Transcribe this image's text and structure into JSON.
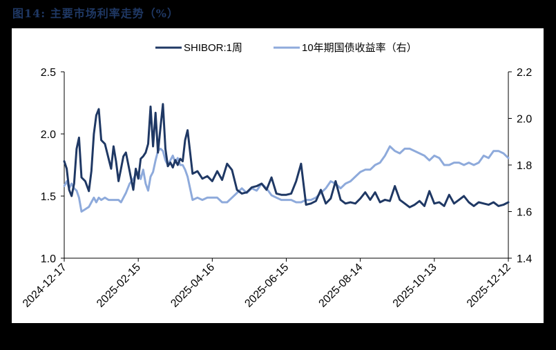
{
  "title": "图14:  主要市场利率走势（%）",
  "colors": {
    "shibor": "#1f3864",
    "bond10y": "#8eaadb",
    "title": "#1f3864"
  },
  "legend": [
    {
      "label": "SHIBOR:1周",
      "color": "#1f3864"
    },
    {
      "label": "10年期国债收益率（右）",
      "color": "#8eaadb"
    }
  ],
  "chart_data": {
    "type": "line",
    "title": "主要市场利率走势（%）",
    "xlabel": "",
    "ylabel": "",
    "x_tick_labels": [
      "2024-12-17",
      "2025-02-15",
      "2025-04-16",
      "2025-06-15",
      "2025-08-14",
      "2025-10-13",
      "2025-12-12"
    ],
    "left_axis": {
      "ticks": [
        1.0,
        1.5,
        2.0,
        2.5
      ],
      "ylim": [
        1.0,
        2.5
      ],
      "tick_labels": [
        "1.0",
        "1.5",
        "2.0",
        "2.5"
      ]
    },
    "right_axis": {
      "ticks": [
        1.4,
        1.6,
        1.8,
        2.0,
        2.2
      ],
      "ylim": [
        1.4,
        2.2
      ],
      "tick_labels": [
        "1.4",
        "1.6",
        "1.8",
        "2.0",
        "2.2"
      ]
    },
    "grid": false,
    "legend_position": "top",
    "x_range_days": 360,
    "series": [
      {
        "name": "SHIBOR:1周",
        "axis": "left",
        "x_day": [
          0,
          2,
          4,
          6,
          8,
          10,
          12,
          14,
          17,
          20,
          22,
          24,
          26,
          28,
          30,
          33,
          36,
          38,
          40,
          42,
          44,
          46,
          48,
          50,
          53,
          56,
          58,
          60,
          62,
          64,
          66,
          68,
          70,
          72,
          74,
          76,
          78,
          80,
          82,
          84,
          86,
          88,
          90,
          92,
          94,
          96,
          98,
          100,
          104,
          108,
          112,
          116,
          120,
          124,
          128,
          132,
          136,
          140,
          144,
          148,
          152,
          156,
          160,
          164,
          168,
          172,
          176,
          180,
          184,
          188,
          192,
          196,
          200,
          204,
          208,
          212,
          216,
          220,
          224,
          228,
          232,
          236,
          240,
          244,
          248,
          252,
          256,
          260,
          264,
          268,
          272,
          276,
          280,
          284,
          288,
          292,
          296,
          300,
          304,
          308,
          312,
          316,
          320,
          324,
          328,
          332,
          336,
          340,
          344,
          348,
          352,
          356,
          360
        ],
        "values": [
          1.78,
          1.72,
          1.55,
          1.5,
          1.6,
          1.88,
          1.97,
          1.65,
          1.62,
          1.54,
          1.7,
          2.0,
          2.15,
          2.2,
          1.95,
          1.92,
          1.8,
          1.72,
          1.9,
          1.78,
          1.62,
          1.72,
          1.82,
          1.85,
          1.7,
          1.55,
          1.72,
          1.64,
          1.8,
          1.82,
          1.85,
          1.92,
          2.22,
          1.9,
          2.17,
          1.85,
          2.05,
          2.24,
          1.88,
          1.74,
          1.77,
          1.73,
          1.79,
          1.75,
          1.8,
          1.78,
          1.95,
          2.03,
          1.68,
          1.7,
          1.64,
          1.66,
          1.62,
          1.7,
          1.63,
          1.76,
          1.71,
          1.55,
          1.52,
          1.53,
          1.57,
          1.58,
          1.6,
          1.55,
          1.65,
          1.52,
          1.51,
          1.51,
          1.52,
          1.62,
          1.76,
          1.43,
          1.44,
          1.46,
          1.55,
          1.44,
          1.48,
          1.62,
          1.47,
          1.44,
          1.45,
          1.44,
          1.48,
          1.53,
          1.47,
          1.53,
          1.45,
          1.47,
          1.46,
          1.58,
          1.47,
          1.44,
          1.41,
          1.43,
          1.46,
          1.42,
          1.54,
          1.44,
          1.45,
          1.42,
          1.51,
          1.44,
          1.47,
          1.5,
          1.45,
          1.42,
          1.45,
          1.44,
          1.43,
          1.45,
          1.42,
          1.43,
          1.45
        ]
      },
      {
        "name": "10年期国债收益率（右）",
        "axis": "right",
        "x_day": [
          0,
          2,
          4,
          6,
          8,
          10,
          12,
          14,
          17,
          20,
          22,
          24,
          26,
          28,
          30,
          33,
          36,
          38,
          40,
          42,
          44,
          46,
          48,
          50,
          53,
          56,
          58,
          60,
          62,
          64,
          66,
          68,
          70,
          72,
          74,
          76,
          78,
          80,
          82,
          84,
          86,
          88,
          90,
          92,
          94,
          96,
          98,
          100,
          104,
          108,
          112,
          116,
          120,
          124,
          128,
          132,
          136,
          140,
          144,
          148,
          152,
          156,
          160,
          164,
          168,
          172,
          176,
          180,
          184,
          188,
          192,
          196,
          200,
          204,
          208,
          212,
          216,
          220,
          224,
          228,
          232,
          236,
          240,
          244,
          248,
          252,
          256,
          260,
          264,
          268,
          272,
          276,
          280,
          284,
          288,
          292,
          296,
          300,
          304,
          308,
          312,
          316,
          320,
          324,
          328,
          332,
          336,
          340,
          344,
          348,
          352,
          356,
          360
        ],
        "values": [
          1.71,
          1.73,
          1.7,
          1.72,
          1.7,
          1.69,
          1.66,
          1.6,
          1.61,
          1.62,
          1.64,
          1.66,
          1.64,
          1.66,
          1.65,
          1.66,
          1.65,
          1.65,
          1.65,
          1.65,
          1.65,
          1.64,
          1.66,
          1.68,
          1.72,
          1.74,
          1.76,
          1.77,
          1.74,
          1.78,
          1.72,
          1.69,
          1.75,
          1.77,
          1.82,
          1.86,
          1.87,
          1.86,
          1.82,
          1.8,
          1.82,
          1.84,
          1.81,
          1.83,
          1.8,
          1.8,
          1.78,
          1.75,
          1.65,
          1.66,
          1.65,
          1.66,
          1.66,
          1.66,
          1.64,
          1.64,
          1.66,
          1.68,
          1.7,
          1.68,
          1.7,
          1.69,
          1.72,
          1.7,
          1.67,
          1.66,
          1.65,
          1.65,
          1.65,
          1.64,
          1.64,
          1.65,
          1.65,
          1.66,
          1.68,
          1.7,
          1.73,
          1.72,
          1.7,
          1.72,
          1.73,
          1.75,
          1.77,
          1.78,
          1.78,
          1.8,
          1.81,
          1.84,
          1.88,
          1.86,
          1.85,
          1.87,
          1.87,
          1.86,
          1.85,
          1.84,
          1.82,
          1.84,
          1.83,
          1.8,
          1.8,
          1.81,
          1.81,
          1.8,
          1.81,
          1.8,
          1.81,
          1.84,
          1.83,
          1.86,
          1.86,
          1.85,
          1.83
        ]
      }
    ]
  }
}
